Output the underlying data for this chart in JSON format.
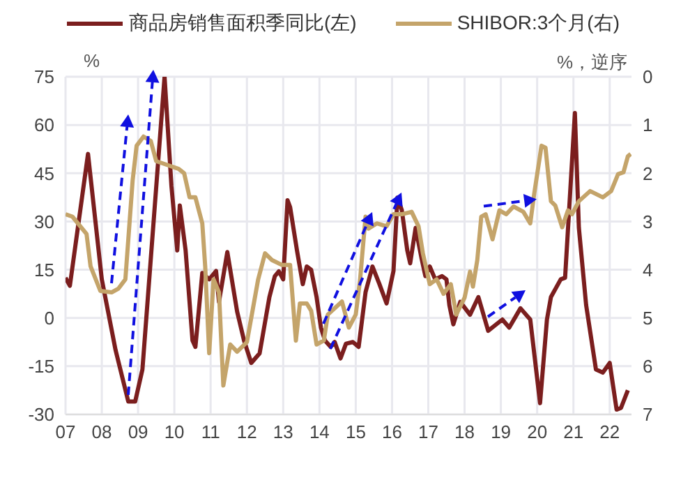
{
  "chart_data": {
    "type": "line",
    "ylabel": "%",
    "y2label": "%，逆序",
    "xlim": [
      2007,
      2022.6
    ],
    "xticks": [
      {
        "value": 2007,
        "label": "07"
      },
      {
        "value": 2008,
        "label": "08"
      },
      {
        "value": 2009,
        "label": "09"
      },
      {
        "value": 2010,
        "label": "10"
      },
      {
        "value": 2011,
        "label": "11"
      },
      {
        "value": 2012,
        "label": "12"
      },
      {
        "value": 2013,
        "label": "13"
      },
      {
        "value": 2014,
        "label": "14"
      },
      {
        "value": 2015,
        "label": "15"
      },
      {
        "value": 2016,
        "label": "16"
      },
      {
        "value": 2017,
        "label": "17"
      },
      {
        "value": 2018,
        "label": "18"
      },
      {
        "value": 2019,
        "label": "19"
      },
      {
        "value": 2020,
        "label": "20"
      },
      {
        "value": 2021,
        "label": "21"
      },
      {
        "value": 2022,
        "label": "22"
      }
    ],
    "ylim": [
      -30,
      75
    ],
    "yticks": [
      -30,
      -15,
      0,
      15,
      30,
      45,
      60,
      75
    ],
    "y2lim": [
      7,
      0
    ],
    "y2ticks": [
      0,
      1,
      2,
      3,
      4,
      5,
      6,
      7
    ],
    "grid": true,
    "legend": "top",
    "series": [
      {
        "name": "商品房销售面积季同比(左)",
        "color": "#7b1e1e",
        "x": [
          2007.0,
          2007.12,
          2007.62,
          2008.0,
          2008.38,
          2008.73,
          2008.92,
          2009.12,
          2009.73,
          2009.92,
          2010.08,
          2010.15,
          2010.31,
          2010.5,
          2010.58,
          2010.77,
          2010.96,
          2011.15,
          2011.23,
          2011.46,
          2011.73,
          2011.92,
          2012.12,
          2012.35,
          2012.62,
          2012.77,
          2012.88,
          2013.0,
          2013.12,
          2013.19,
          2013.38,
          2013.54,
          2013.65,
          2013.77,
          2013.92,
          2014.04,
          2014.15,
          2014.31,
          2014.42,
          2014.58,
          2014.73,
          2014.92,
          2015.08,
          2015.27,
          2015.46,
          2015.65,
          2015.85,
          2016.04,
          2016.15,
          2016.27,
          2016.42,
          2016.5,
          2016.65,
          2016.81,
          2016.92,
          2017.04,
          2017.19,
          2017.38,
          2017.5,
          2017.58,
          2017.69,
          2017.88,
          2018.15,
          2018.38,
          2018.65,
          2019.04,
          2019.23,
          2019.54,
          2019.81,
          2020.08,
          2020.27,
          2020.38,
          2020.65,
          2020.77,
          2021.04,
          2021.15,
          2021.35,
          2021.62,
          2021.81,
          2022.0,
          2022.19,
          2022.31,
          2022.5
        ],
        "values": [
          12.5,
          10,
          51,
          12,
          -10,
          -26,
          -26,
          -16,
          75,
          41,
          21,
          35,
          21,
          -7,
          -9,
          14,
          12,
          14.6,
          5,
          20.5,
          2,
          -7,
          -14,
          -11,
          6.5,
          13,
          14.5,
          12,
          36.6,
          34.5,
          21,
          10.5,
          16,
          15,
          6.5,
          -3,
          -7,
          -9,
          -7.5,
          -12.6,
          -8,
          -7.5,
          -9,
          8,
          16,
          10.6,
          4.5,
          14.6,
          37.4,
          33.5,
          21,
          17,
          28,
          18.7,
          13,
          16,
          12,
          13,
          12,
          4,
          -2,
          5,
          1,
          6.5,
          -4,
          -0.5,
          -3,
          3,
          -0.5,
          -26.5,
          -0.5,
          6.5,
          12,
          12.5,
          63.7,
          28,
          4,
          -16,
          -17,
          -14,
          -28.5,
          -28,
          -22.5
        ]
      },
      {
        "name": "SHIBOR:3个月(右)",
        "color": "#c4a46a",
        "axis": "y2",
        "x": [
          2007.0,
          2007.19,
          2007.58,
          2007.69,
          2007.96,
          2008.27,
          2008.46,
          2008.65,
          2008.85,
          2008.96,
          2009.15,
          2009.35,
          2009.5,
          2009.81,
          2010.12,
          2010.27,
          2010.42,
          2010.58,
          2010.77,
          2010.85,
          2010.96,
          2011.08,
          2011.23,
          2011.35,
          2011.54,
          2011.73,
          2012.0,
          2012.31,
          2012.5,
          2012.69,
          2012.96,
          2013.19,
          2013.35,
          2013.46,
          2013.65,
          2013.77,
          2013.92,
          2014.12,
          2014.23,
          2014.62,
          2014.81,
          2015.0,
          2015.12,
          2015.27,
          2015.35,
          2015.58,
          2015.85,
          2016.04,
          2016.27,
          2016.54,
          2016.73,
          2016.85,
          2017.04,
          2017.23,
          2017.42,
          2017.62,
          2017.77,
          2018.0,
          2018.15,
          2018.23,
          2018.35,
          2018.46,
          2018.58,
          2018.77,
          2018.96,
          2019.15,
          2019.35,
          2019.62,
          2019.81,
          2019.92,
          2020.12,
          2020.23,
          2020.38,
          2020.5,
          2020.69,
          2020.85,
          2020.96,
          2021.15,
          2021.46,
          2021.81,
          2022.04,
          2022.23,
          2022.38,
          2022.5,
          2022.58
        ],
        "values": [
          2.85,
          2.9,
          3.26,
          3.93,
          4.44,
          4.47,
          4.39,
          4.2,
          2.15,
          1.43,
          1.24,
          1.33,
          1.75,
          1.83,
          1.91,
          2.0,
          2.5,
          2.5,
          3.04,
          3.93,
          5.73,
          4.2,
          4.47,
          6.4,
          5.55,
          5.7,
          5.5,
          4.2,
          3.66,
          3.8,
          3.9,
          3.9,
          5.47,
          4.7,
          4.7,
          4.85,
          5.55,
          5.47,
          4.93,
          4.66,
          5.2,
          4.93,
          4.2,
          2.9,
          3.15,
          3.04,
          3.1,
          2.85,
          2.85,
          2.8,
          3.1,
          3.66,
          4.3,
          4.2,
          4.5,
          4.3,
          4.93,
          4.58,
          4.04,
          4.35,
          3.8,
          2.9,
          2.85,
          3.37,
          2.77,
          2.85,
          2.69,
          2.8,
          3.04,
          2.42,
          1.43,
          1.47,
          2.58,
          2.67,
          3.12,
          2.77,
          2.85,
          2.58,
          2.37,
          2.5,
          2.37,
          2.02,
          1.98,
          1.65,
          1.6
        ]
      }
    ]
  }
}
